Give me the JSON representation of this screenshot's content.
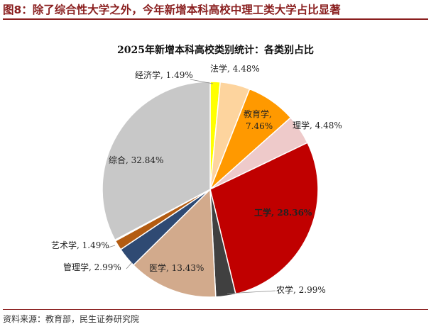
{
  "figure": {
    "label": "图8：",
    "caption": "除了综合性大学之外，今年新增本科高校中理工类大学占比显著"
  },
  "source": "资料来源：教育部，民生证券研究院",
  "chart_data": {
    "type": "pie",
    "title": "2025年新增本科高校类别统计：各类别占比",
    "slices": [
      {
        "label": "经济学, 1.49%",
        "value": 1.49,
        "color": "#ffff00"
      },
      {
        "label": "法学, 4.48%",
        "value": 4.48,
        "color": "#fdd49e"
      },
      {
        "label": "教育学, 7.46%",
        "value": 7.46,
        "color": "#ff9900"
      },
      {
        "label": "理学, 4.48%",
        "value": 4.48,
        "color": "#eecaca"
      },
      {
        "label": "工学, 28.36%",
        "value": 28.36,
        "color": "#c00000",
        "bold": true,
        "label_color": "#ffffff"
      },
      {
        "label": "农学, 2.99%",
        "value": 2.99,
        "color": "#404040"
      },
      {
        "label": "医学, 13.43%",
        "value": 13.43,
        "color": "#d2aa8c"
      },
      {
        "label": "管理学, 2.99%",
        "value": 2.99,
        "color": "#2f4a73"
      },
      {
        "label": "艺术学, 1.49%",
        "value": 1.49,
        "color": "#b35c12"
      },
      {
        "label": "",
        "value": 0.15,
        "color": "#c00000"
      },
      {
        "label": "综合, 32.84%",
        "value": 32.84,
        "color": "#c8c8c8"
      }
    ]
  }
}
